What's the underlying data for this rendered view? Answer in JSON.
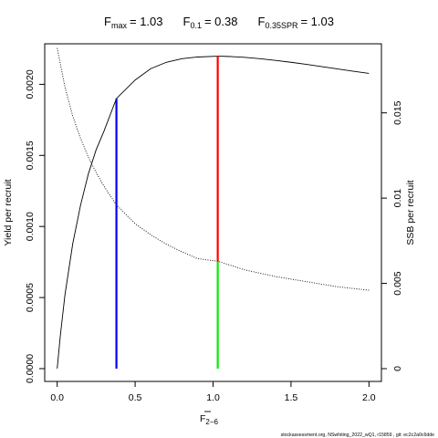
{
  "chart_data": {
    "type": "line",
    "title": {
      "fmax_label": "F",
      "fmax_sub": "max",
      "fmax_value": "= 1.03",
      "f01_label": "F",
      "f01_sub": "0.1",
      "f01_value": "= 0.38",
      "fspr_label": "F",
      "fspr_sub": "0.35SPR",
      "fspr_value": "= 1.03"
    },
    "xlabel": "F",
    "xlabel_sub": "2−6",
    "ylabel_left": "Yield per recruit",
    "ylabel_right": "SSB per recruit",
    "xlim": [
      -0.08,
      2.08
    ],
    "ylim_left": [
      -9e-05,
      0.002285
    ],
    "ylim_right": [
      -0.00075,
      0.01905
    ],
    "x_ticks": [
      "0.0",
      "0.5",
      "1.0",
      "1.5",
      "2.0"
    ],
    "x_tick_values": [
      0,
      0.5,
      1,
      1.5,
      2
    ],
    "y_left_ticks": [
      "0.0000",
      "0.0005",
      "0.0010",
      "0.0015",
      "0.0020"
    ],
    "y_left_tick_values": [
      0,
      0.0005,
      0.001,
      0.0015,
      0.002
    ],
    "y_right_ticks": [
      "0",
      "0.005",
      "0.01",
      "0.015"
    ],
    "y_right_tick_values": [
      0,
      0.005,
      0.01,
      0.015
    ],
    "series": [
      {
        "axis": "left",
        "style": "solid",
        "x": [
          0.0,
          0.02,
          0.05,
          0.1,
          0.15,
          0.2,
          0.25,
          0.3,
          0.38,
          0.5,
          0.6,
          0.7,
          0.8,
          0.9,
          1.03,
          1.1,
          1.2,
          1.3,
          1.4,
          1.5,
          1.6,
          1.7,
          1.8,
          1.9,
          2.0
        ],
        "values": [
          0.0,
          0.00023,
          0.00052,
          0.00088,
          0.00115,
          0.00137,
          0.00154,
          0.00167,
          0.0019,
          0.00203,
          0.00211,
          0.002155,
          0.00218,
          0.002192,
          0.002198,
          0.002196,
          0.00219,
          0.00218,
          0.002168,
          0.002155,
          0.00214,
          0.002124,
          0.002108,
          0.002092,
          0.002077
        ]
      },
      {
        "axis": "right",
        "style": "dotted",
        "x": [
          0.0,
          0.05,
          0.1,
          0.15,
          0.2,
          0.25,
          0.3,
          0.38,
          0.5,
          0.6,
          0.7,
          0.8,
          0.9,
          1.03,
          1.2,
          1.4,
          1.6,
          1.8,
          2.0
        ],
        "values": [
          0.0188,
          0.0165,
          0.0148,
          0.0135,
          0.0124,
          0.0115,
          0.0107,
          0.0096,
          0.0085,
          0.00785,
          0.0073,
          0.00685,
          0.00645,
          0.0063,
          0.0058,
          0.0054,
          0.0051,
          0.0048,
          0.0046
        ]
      }
    ],
    "reference_lines": [
      {
        "x": 0.38,
        "axis": "left",
        "from": 0,
        "to": 0.0019,
        "color": "#0000ff"
      },
      {
        "x": 1.03,
        "axis": "left",
        "from": 0,
        "to": 0.00075,
        "color": "#00ee00"
      },
      {
        "x": 1.03,
        "axis": "left",
        "from": 0.00075,
        "to": 0.002198,
        "color": "#ff0000"
      }
    ]
  },
  "footer_text": "stockassessment.org, NSwhiting_2022_wQ1, r15859 , git: ec2c2a0c6dde"
}
